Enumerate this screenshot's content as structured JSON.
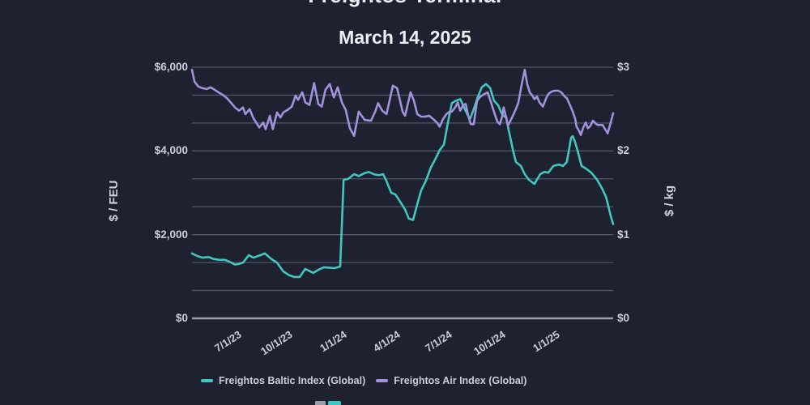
{
  "header": {
    "title": "Freightos Terminal",
    "subtitle": "March 14, 2025"
  },
  "colors": {
    "background": "#1d2130",
    "gridline": "#535868",
    "zero_line": "#9aa0b0",
    "tick_text": "#c9cedb",
    "title_text": "#edeff5",
    "fbx_teal": "#42c7c0",
    "fax_purple": "#a292dc"
  },
  "chart_data": {
    "type": "line",
    "title": "Freightos Terminal",
    "subtitle": "March 14, 2025",
    "grid": {
      "horizontal_lines": 10,
      "vertical_lines": 0
    },
    "legend": {
      "position": "bottom"
    },
    "x_axis": {
      "ticks": [
        {
          "label": "7/1/23",
          "f": 0.096
        },
        {
          "label": "10/1/23",
          "f": 0.217
        },
        {
          "label": "1/1/24",
          "f": 0.346
        },
        {
          "label": "4/1/24",
          "f": 0.473
        },
        {
          "label": "7/1/24",
          "f": 0.596
        },
        {
          "label": "10/1/24",
          "f": 0.723
        },
        {
          "label": "1/1/25",
          "f": 0.852
        }
      ]
    },
    "left_axis": {
      "title": "$ / FEU",
      "range": [
        0,
        6000
      ],
      "ticks": [
        {
          "label": "$6,000",
          "value": 6000
        },
        {
          "label": "$4,000",
          "value": 4000
        },
        {
          "label": "$2,000",
          "value": 2000
        },
        {
          "label": "$0",
          "value": 0
        }
      ]
    },
    "right_axis": {
      "title": "$ / kg",
      "range": [
        0,
        3
      ],
      "ticks": [
        {
          "label": "$3",
          "value": 3
        },
        {
          "label": "$2",
          "value": 2
        },
        {
          "label": "$1",
          "value": 1
        },
        {
          "label": "$0",
          "value": 0
        }
      ]
    },
    "series": [
      {
        "name": "Freightos Baltic Index (Global)",
        "color": "#42c7c0",
        "axis": "left",
        "points": [
          [
            0.0,
            1550
          ],
          [
            0.015,
            1480
          ],
          [
            0.025,
            1450
          ],
          [
            0.04,
            1465
          ],
          [
            0.05,
            1420
          ],
          [
            0.063,
            1400
          ],
          [
            0.079,
            1395
          ],
          [
            0.092,
            1340
          ],
          [
            0.102,
            1285
          ],
          [
            0.112,
            1300
          ],
          [
            0.121,
            1330
          ],
          [
            0.135,
            1510
          ],
          [
            0.146,
            1450
          ],
          [
            0.16,
            1500
          ],
          [
            0.173,
            1550
          ],
          [
            0.188,
            1420
          ],
          [
            0.202,
            1330
          ],
          [
            0.217,
            1120
          ],
          [
            0.231,
            1030
          ],
          [
            0.242,
            990
          ],
          [
            0.256,
            990
          ],
          [
            0.269,
            1180
          ],
          [
            0.279,
            1130
          ],
          [
            0.288,
            1085
          ],
          [
            0.3,
            1160
          ],
          [
            0.313,
            1220
          ],
          [
            0.327,
            1210
          ],
          [
            0.338,
            1200
          ],
          [
            0.346,
            1220
          ],
          [
            0.352,
            1240
          ],
          [
            0.356,
            2250
          ],
          [
            0.36,
            3310
          ],
          [
            0.371,
            3330
          ],
          [
            0.385,
            3445
          ],
          [
            0.396,
            3400
          ],
          [
            0.41,
            3470
          ],
          [
            0.419,
            3500
          ],
          [
            0.433,
            3440
          ],
          [
            0.444,
            3420
          ],
          [
            0.454,
            3445
          ],
          [
            0.463,
            3250
          ],
          [
            0.473,
            3000
          ],
          [
            0.483,
            2960
          ],
          [
            0.494,
            2790
          ],
          [
            0.506,
            2600
          ],
          [
            0.515,
            2380
          ],
          [
            0.525,
            2350
          ],
          [
            0.535,
            2730
          ],
          [
            0.544,
            3055
          ],
          [
            0.556,
            3300
          ],
          [
            0.567,
            3600
          ],
          [
            0.579,
            3830
          ],
          [
            0.588,
            4020
          ],
          [
            0.598,
            4150
          ],
          [
            0.608,
            4700
          ],
          [
            0.617,
            5140
          ],
          [
            0.627,
            5200
          ],
          [
            0.637,
            5240
          ],
          [
            0.644,
            5080
          ],
          [
            0.654,
            4870
          ],
          [
            0.66,
            4760
          ],
          [
            0.669,
            5000
          ],
          [
            0.679,
            5300
          ],
          [
            0.688,
            5520
          ],
          [
            0.698,
            5600
          ],
          [
            0.708,
            5500
          ],
          [
            0.717,
            5200
          ],
          [
            0.727,
            5090
          ],
          [
            0.737,
            4860
          ],
          [
            0.746,
            4800
          ],
          [
            0.752,
            4500
          ],
          [
            0.762,
            4025
          ],
          [
            0.769,
            3735
          ],
          [
            0.781,
            3640
          ],
          [
            0.79,
            3445
          ],
          [
            0.8,
            3310
          ],
          [
            0.813,
            3210
          ],
          [
            0.827,
            3445
          ],
          [
            0.837,
            3500
          ],
          [
            0.846,
            3480
          ],
          [
            0.858,
            3640
          ],
          [
            0.871,
            3675
          ],
          [
            0.881,
            3640
          ],
          [
            0.89,
            3735
          ],
          [
            0.9,
            4315
          ],
          [
            0.904,
            4355
          ],
          [
            0.91,
            4200
          ],
          [
            0.915,
            4025
          ],
          [
            0.925,
            3640
          ],
          [
            0.935,
            3580
          ],
          [
            0.948,
            3480
          ],
          [
            0.962,
            3310
          ],
          [
            0.973,
            3115
          ],
          [
            0.983,
            2900
          ],
          [
            0.988,
            2700
          ],
          [
            0.994,
            2450
          ],
          [
            1.0,
            2250
          ]
        ]
      },
      {
        "name": "Freightos Air Index (Global)",
        "color": "#a292dc",
        "axis": "right",
        "points": [
          [
            0.0,
            2.97
          ],
          [
            0.006,
            2.83
          ],
          [
            0.015,
            2.77
          ],
          [
            0.025,
            2.75
          ],
          [
            0.035,
            2.74
          ],
          [
            0.044,
            2.76
          ],
          [
            0.054,
            2.73
          ],
          [
            0.063,
            2.7
          ],
          [
            0.073,
            2.67
          ],
          [
            0.083,
            2.63
          ],
          [
            0.092,
            2.58
          ],
          [
            0.102,
            2.52
          ],
          [
            0.112,
            2.48
          ],
          [
            0.121,
            2.52
          ],
          [
            0.127,
            2.44
          ],
          [
            0.137,
            2.5
          ],
          [
            0.146,
            2.39
          ],
          [
            0.16,
            2.28
          ],
          [
            0.169,
            2.34
          ],
          [
            0.175,
            2.26
          ],
          [
            0.185,
            2.42
          ],
          [
            0.192,
            2.26
          ],
          [
            0.202,
            2.46
          ],
          [
            0.21,
            2.4
          ],
          [
            0.217,
            2.46
          ],
          [
            0.227,
            2.49
          ],
          [
            0.237,
            2.53
          ],
          [
            0.246,
            2.66
          ],
          [
            0.252,
            2.61
          ],
          [
            0.262,
            2.7
          ],
          [
            0.269,
            2.58
          ],
          [
            0.279,
            2.55
          ],
          [
            0.29,
            2.81
          ],
          [
            0.3,
            2.56
          ],
          [
            0.308,
            2.53
          ],
          [
            0.317,
            2.73
          ],
          [
            0.327,
            2.8
          ],
          [
            0.337,
            2.64
          ],
          [
            0.346,
            2.76
          ],
          [
            0.356,
            2.58
          ],
          [
            0.365,
            2.49
          ],
          [
            0.375,
            2.27
          ],
          [
            0.385,
            2.18
          ],
          [
            0.396,
            2.47
          ],
          [
            0.41,
            2.37
          ],
          [
            0.425,
            2.36
          ],
          [
            0.435,
            2.47
          ],
          [
            0.442,
            2.57
          ],
          [
            0.452,
            2.48
          ],
          [
            0.462,
            2.44
          ],
          [
            0.469,
            2.6
          ],
          [
            0.477,
            2.78
          ],
          [
            0.487,
            2.75
          ],
          [
            0.494,
            2.6
          ],
          [
            0.5,
            2.47
          ],
          [
            0.506,
            2.42
          ],
          [
            0.512,
            2.55
          ],
          [
            0.519,
            2.7
          ],
          [
            0.527,
            2.6
          ],
          [
            0.535,
            2.44
          ],
          [
            0.544,
            2.41
          ],
          [
            0.554,
            2.41
          ],
          [
            0.563,
            2.42
          ],
          [
            0.573,
            2.38
          ],
          [
            0.583,
            2.33
          ],
          [
            0.588,
            2.29
          ],
          [
            0.596,
            2.38
          ],
          [
            0.604,
            2.44
          ],
          [
            0.612,
            2.47
          ],
          [
            0.617,
            2.47
          ],
          [
            0.625,
            2.52
          ],
          [
            0.631,
            2.58
          ],
          [
            0.637,
            2.48
          ],
          [
            0.644,
            2.55
          ],
          [
            0.65,
            2.56
          ],
          [
            0.656,
            2.42
          ],
          [
            0.662,
            2.32
          ],
          [
            0.669,
            2.32
          ],
          [
            0.677,
            2.6
          ],
          [
            0.685,
            2.65
          ],
          [
            0.694,
            2.68
          ],
          [
            0.702,
            2.7
          ],
          [
            0.71,
            2.58
          ],
          [
            0.717,
            2.47
          ],
          [
            0.725,
            2.35
          ],
          [
            0.731,
            2.32
          ],
          [
            0.737,
            2.42
          ],
          [
            0.74,
            2.52
          ],
          [
            0.746,
            2.4
          ],
          [
            0.75,
            2.3
          ],
          [
            0.76,
            2.4
          ],
          [
            0.769,
            2.5
          ],
          [
            0.775,
            2.58
          ],
          [
            0.783,
            2.8
          ],
          [
            0.79,
            2.97
          ],
          [
            0.796,
            2.8
          ],
          [
            0.802,
            2.7
          ],
          [
            0.808,
            2.66
          ],
          [
            0.813,
            2.62
          ],
          [
            0.819,
            2.65
          ],
          [
            0.825,
            2.58
          ],
          [
            0.833,
            2.53
          ],
          [
            0.84,
            2.62
          ],
          [
            0.846,
            2.68
          ],
          [
            0.854,
            2.71
          ],
          [
            0.862,
            2.72
          ],
          [
            0.869,
            2.72
          ],
          [
            0.877,
            2.7
          ],
          [
            0.885,
            2.65
          ],
          [
            0.89,
            2.63
          ],
          [
            0.898,
            2.54
          ],
          [
            0.904,
            2.47
          ],
          [
            0.91,
            2.38
          ],
          [
            0.913,
            2.29
          ],
          [
            0.919,
            2.24
          ],
          [
            0.923,
            2.19
          ],
          [
            0.929,
            2.28
          ],
          [
            0.935,
            2.34
          ],
          [
            0.94,
            2.27
          ],
          [
            0.946,
            2.3
          ],
          [
            0.952,
            2.36
          ],
          [
            0.958,
            2.33
          ],
          [
            0.963,
            2.31
          ],
          [
            0.969,
            2.31
          ],
          [
            0.975,
            2.31
          ],
          [
            0.981,
            2.26
          ],
          [
            0.987,
            2.21
          ],
          [
            0.992,
            2.3
          ],
          [
            1.0,
            2.45
          ]
        ]
      }
    ]
  }
}
